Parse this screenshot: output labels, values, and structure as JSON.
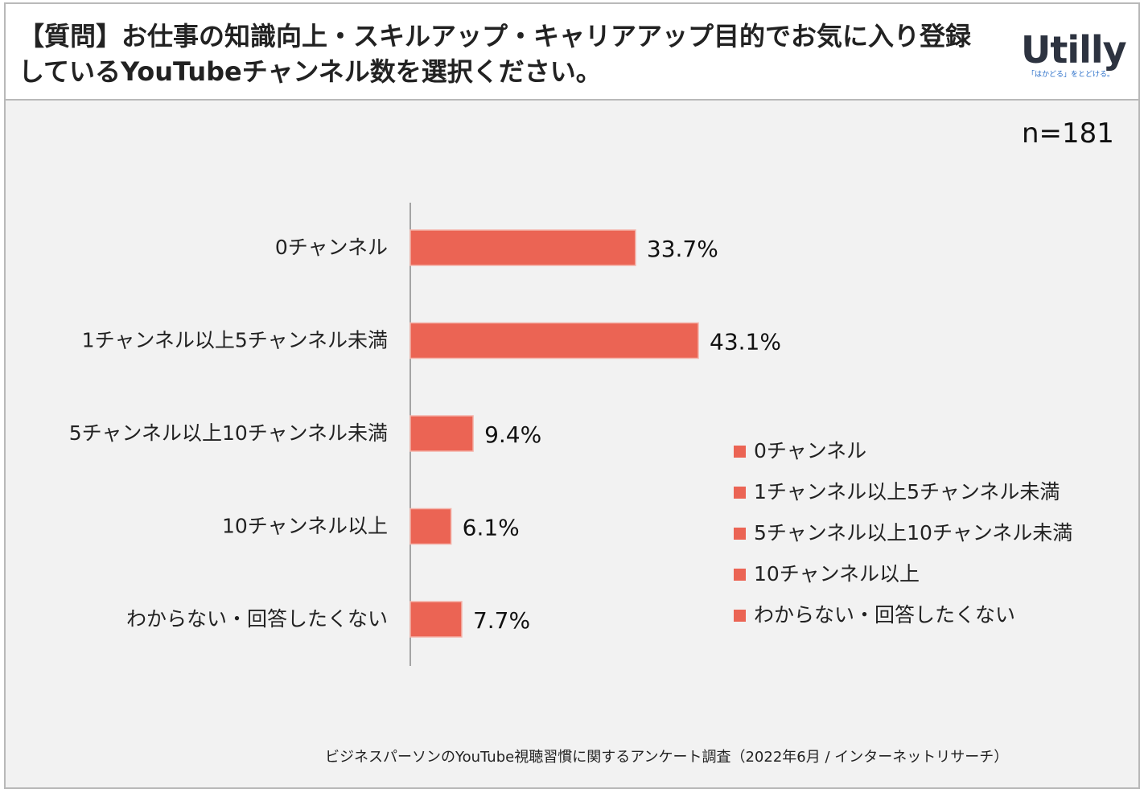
{
  "header": {
    "title": "【質問】お仕事の知識向上・スキルアップ・キャリアアップ目的でお気に入り登録しているYouTubeチャンネル数を選択ください。",
    "logo_text": "Utilly",
    "logo_tagline": "「はかどる」をとどける。"
  },
  "sample_size": "n=181",
  "source": "ビジネスパーソンのYouTube視聴習慣に関するアンケート調査（2022年6月 / インターネットリサーチ）",
  "colors": {
    "bar": "#eb6454",
    "axis": "#8a8a8a"
  },
  "chart_data": {
    "type": "bar",
    "orientation": "horizontal",
    "categories": [
      "0チャンネル",
      "1チャンネル以上5チャンネル未満",
      "5チャンネル以上10チャンネル未満",
      "10チャンネル以上",
      "わからない・回答したくない"
    ],
    "values": [
      33.7,
      43.1,
      9.4,
      6.1,
      7.7
    ],
    "data_labels": [
      "33.7%",
      "43.1%",
      "9.4%",
      "6.1%",
      "7.7%"
    ],
    "unit": "%",
    "xlim": [
      0,
      100
    ],
    "legend": {
      "position": "right",
      "entries": [
        "0チャンネル",
        "1チャンネル以上5チャンネル未満",
        "5チャンネル以上10チャンネル未満",
        "10チャンネル以上",
        "わからない・回答したくない"
      ]
    },
    "grid": false
  }
}
